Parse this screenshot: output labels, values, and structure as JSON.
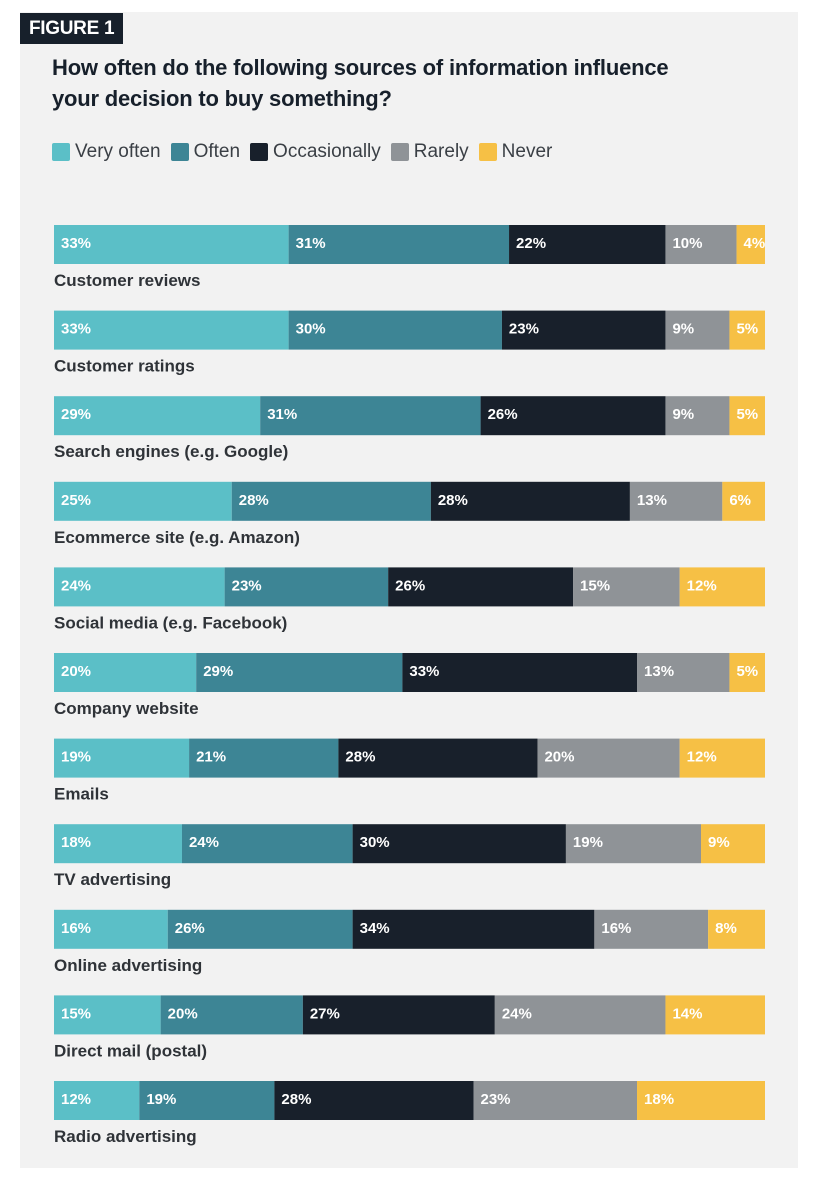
{
  "figure_tag": "FIGURE 1",
  "title_lines": [
    "How often do the following sources of information influence",
    "your decision to buy something?"
  ],
  "chart_data": {
    "type": "bar",
    "orientation": "horizontal",
    "stacked": "100%",
    "title": "How often do the following sources of information influence your decision to buy something?",
    "legend_position": "top-left",
    "grid": false,
    "categories": [
      "Customer reviews",
      "Customer ratings",
      "Search engines (e.g. Google)",
      "Ecommerce site (e.g. Amazon)",
      "Social media (e.g. Facebook)",
      "Company website",
      "Emails",
      "TV advertising",
      "Online advertising",
      "Direct mail (postal)",
      "Radio advertising"
    ],
    "series": [
      {
        "name": "Very often",
        "color": "#5bbfc7",
        "label_color": "#ffffff",
        "values": [
          33,
          33,
          29,
          25,
          24,
          20,
          19,
          18,
          16,
          15,
          12
        ]
      },
      {
        "name": "Often",
        "color": "#3d8595",
        "label_color": "#ffffff",
        "values": [
          31,
          30,
          31,
          28,
          23,
          29,
          21,
          24,
          26,
          20,
          19
        ]
      },
      {
        "name": "Occasionally",
        "color": "#18202b",
        "label_color": "#ffffff",
        "values": [
          22,
          23,
          26,
          28,
          26,
          33,
          28,
          30,
          34,
          27,
          28
        ]
      },
      {
        "name": "Rarely",
        "color": "#8f9397",
        "label_color": "#ffffff",
        "values": [
          10,
          9,
          9,
          13,
          15,
          13,
          20,
          19,
          16,
          24,
          23
        ]
      },
      {
        "name": "Never",
        "color": "#f6c045",
        "label_color": "#ffffff",
        "values": [
          4,
          5,
          5,
          6,
          12,
          5,
          12,
          9,
          8,
          14,
          18
        ]
      }
    ]
  }
}
